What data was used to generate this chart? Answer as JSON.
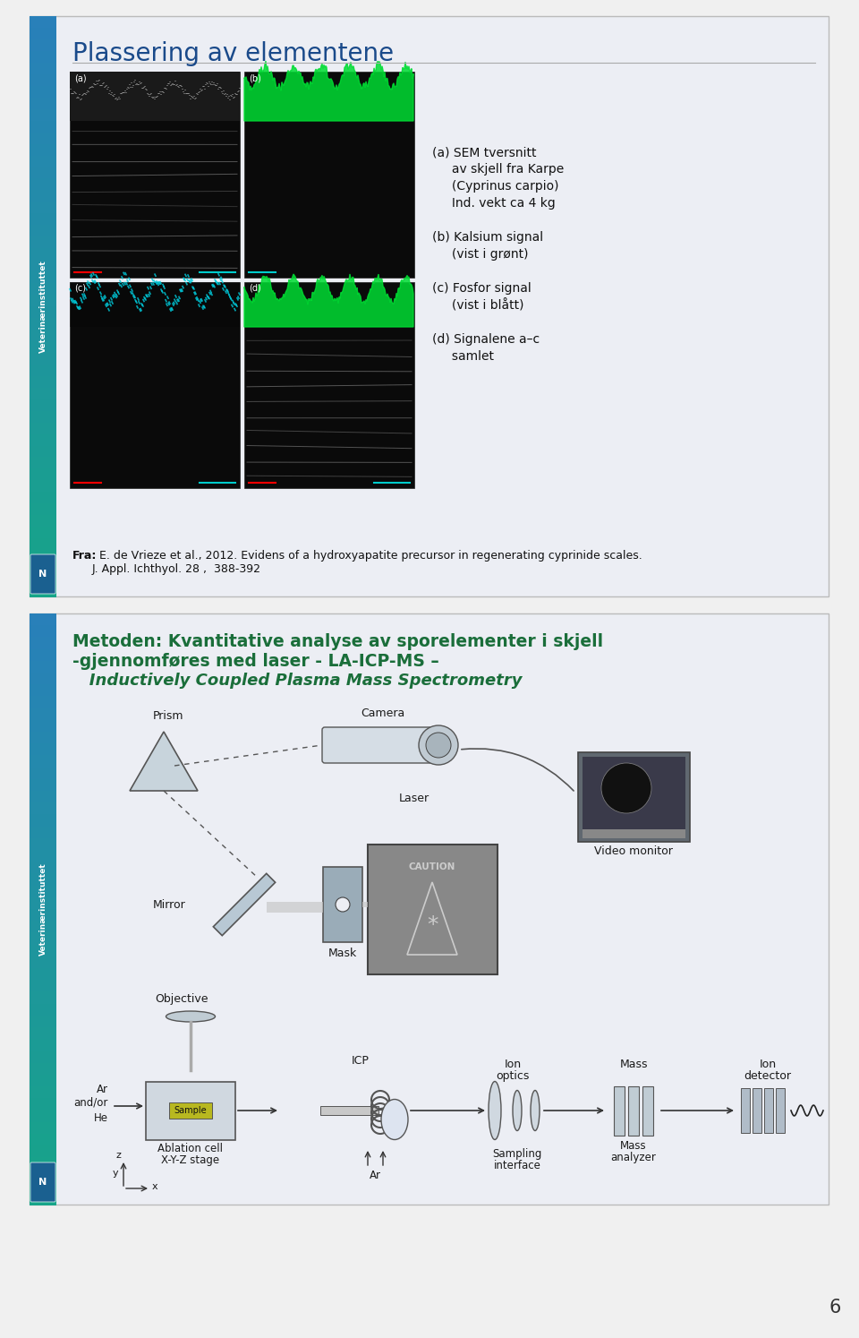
{
  "bg_color": "#f0f0f0",
  "page_number": "6",
  "slide1": {
    "bg_color": "#eceef4",
    "title": "Plassering av elementene",
    "title_color": "#1a4a8a",
    "title_fontsize": 20,
    "sidebar_text": "Veterinærinstituttet",
    "caption_lines": [
      "(a) SEM tversnitt",
      "     av skjell fra Karpe",
      "     (Cyprinus carpio)",
      "     Ind. vekt ca 4 kg",
      "",
      "(b) Kalsium signal",
      "     (vist i grønt)",
      "",
      "(c) Fosfor signal",
      "     (vist i blått)",
      "",
      "(d) Signalene a–c",
      "     samlet"
    ],
    "footer_bold": "Fra:",
    "footer_text": "  E. de Vrieze et al., 2012. Evidens of a hydroxyapatite precursor in regenerating cyprinide scales.\nJ. Appl. Ichthyol. 28 ,  388-392",
    "footer_fontsize": 9
  },
  "slide2": {
    "bg_color": "#eceef4",
    "title_line1": "Metoden: Kvantitative analyse av sporelementer i skjell",
    "title_line2": "-gjennomføres med laser - LA-ICP-MS –",
    "title_line3": "   Inductively Coupled Plasma Mass Spectrometry",
    "title_color": "#1a6e3a",
    "title_fontsize": 13.5
  }
}
